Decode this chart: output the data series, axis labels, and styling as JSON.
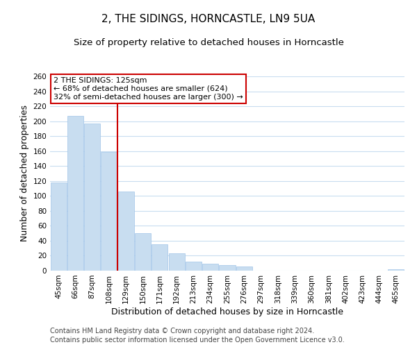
{
  "title": "2, THE SIDINGS, HORNCASTLE, LN9 5UA",
  "subtitle": "Size of property relative to detached houses in Horncastle",
  "xlabel": "Distribution of detached houses by size in Horncastle",
  "ylabel": "Number of detached properties",
  "categories": [
    "45sqm",
    "66sqm",
    "87sqm",
    "108sqm",
    "129sqm",
    "150sqm",
    "171sqm",
    "192sqm",
    "213sqm",
    "234sqm",
    "255sqm",
    "276sqm",
    "297sqm",
    "318sqm",
    "339sqm",
    "360sqm",
    "381sqm",
    "402sqm",
    "423sqm",
    "444sqm",
    "465sqm"
  ],
  "values": [
    118,
    207,
    197,
    159,
    106,
    50,
    35,
    23,
    12,
    9,
    7,
    6,
    0,
    0,
    0,
    0,
    0,
    0,
    0,
    0,
    2
  ],
  "bar_color": "#c8ddf0",
  "bar_edge_color": "#a0c4e8",
  "red_line_color": "#cc0000",
  "red_line_index": 4,
  "annotation_title": "2 THE SIDINGS: 125sqm",
  "annotation_line1": "← 68% of detached houses are smaller (624)",
  "annotation_line2": "32% of semi-detached houses are larger (300) →",
  "annotation_box_facecolor": "#ffffff",
  "annotation_box_edgecolor": "#cc0000",
  "ylim": [
    0,
    260
  ],
  "yticks": [
    0,
    20,
    40,
    60,
    80,
    100,
    120,
    140,
    160,
    180,
    200,
    220,
    240,
    260
  ],
  "footer1": "Contains HM Land Registry data © Crown copyright and database right 2024.",
  "footer2": "Contains public sector information licensed under the Open Government Licence v3.0.",
  "bg_color": "#ffffff",
  "grid_color": "#c8ddf0",
  "title_fontsize": 11,
  "subtitle_fontsize": 9.5,
  "axis_label_fontsize": 9,
  "tick_fontsize": 7.5,
  "annotation_fontsize": 8,
  "footer_fontsize": 7
}
